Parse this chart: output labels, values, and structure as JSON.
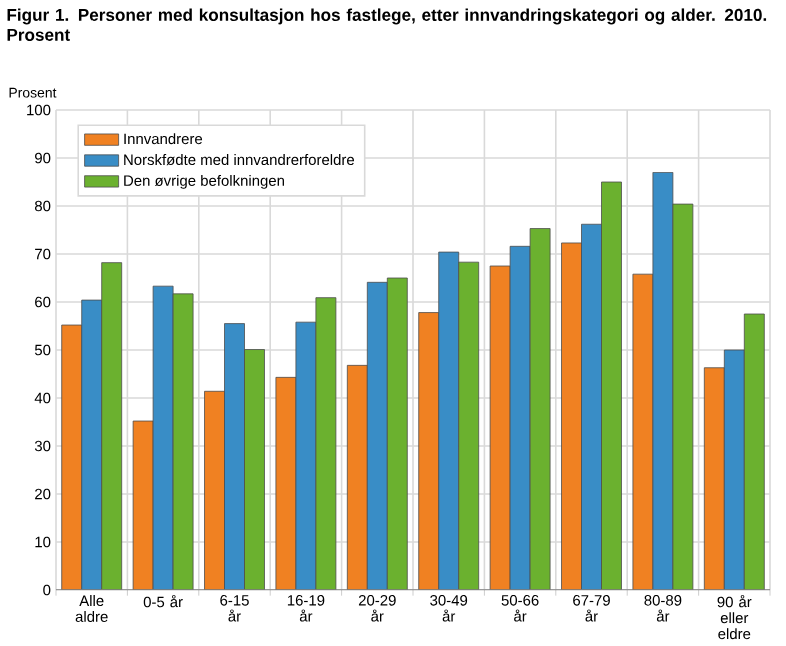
{
  "chart_data": {
    "type": "bar",
    "title": "Figur 1. Personer med konsultasjon hos fastlege, etter innvandringskategori og alder. 2010. Prosent",
    "ylabel": "Prosent",
    "categories": [
      "Alle aldre",
      "0-5 år",
      "6-15 år",
      "16-19 år",
      "20-29 år",
      "30-49 år",
      "50-66 år",
      "67-79 år",
      "80-89 år",
      "90 år eller eldre"
    ],
    "series": [
      {
        "name": "Innvandrere",
        "color": "#f08122",
        "values": [
          55.2,
          35.2,
          41.4,
          44.3,
          46.8,
          57.8,
          67.5,
          72.3,
          65.8,
          46.3
        ]
      },
      {
        "name": "Norskfødte med innvandrerforeldre",
        "color": "#398dc6",
        "values": [
          60.4,
          63.3,
          55.5,
          55.8,
          64.1,
          70.4,
          71.6,
          76.2,
          87.0,
          50.0
        ]
      },
      {
        "name": "Den øvrige befolkningen",
        "color": "#6bb12f",
        "values": [
          68.2,
          61.7,
          50.1,
          60.9,
          65.0,
          68.3,
          75.3,
          85.0,
          80.4,
          57.5
        ]
      }
    ],
    "ylim": [
      0,
      100
    ],
    "yticks": [
      0,
      10,
      20,
      30,
      40,
      50,
      60,
      70,
      80,
      90,
      100
    ],
    "grid": true,
    "legend": "top left"
  }
}
